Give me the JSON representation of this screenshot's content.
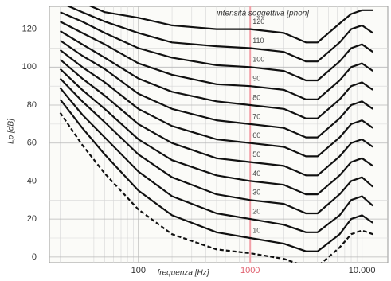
{
  "chart_data": {
    "type": "line",
    "title": "intensità soggettiva [phon]",
    "x_label": "frequenza [Hz]",
    "y_label": "Lp [dB]",
    "log_x": true,
    "grid": true,
    "highlight_x": 1000,
    "highlight_color": "#f2a0a8",
    "xlim": [
      16,
      17000
    ],
    "xticks": [
      100,
      1000,
      {
        "value": 10000,
        "label": "10.000"
      }
    ],
    "ylim": [
      -3,
      132
    ],
    "yticks": [
      0,
      20,
      40,
      60,
      80,
      100,
      120
    ],
    "x": [
      20,
      31.5,
      50,
      100,
      200,
      500,
      1000,
      2000,
      3150,
      4000,
      6300,
      8000,
      10000,
      12500
    ],
    "series": [
      {
        "color": "#111111",
        "dashed": true,
        "values": [
          76,
          59,
          44,
          25,
          12,
          4,
          2,
          -1,
          -5,
          -5,
          5,
          12,
          14,
          12
        ]
      },
      {
        "name": "10",
        "color": "#111111",
        "values": [
          83,
          68,
          54,
          35,
          22,
          13,
          10,
          7,
          3,
          3,
          12,
          20,
          22,
          18
        ]
      },
      {
        "name": "20",
        "color": "#111111",
        "values": [
          89,
          75,
          63,
          45,
          32,
          23,
          20,
          17,
          13,
          13,
          22,
          30,
          32,
          27
        ]
      },
      {
        "name": "30",
        "color": "#111111",
        "values": [
          94,
          82,
          71,
          54,
          42,
          33,
          30,
          28,
          23,
          23,
          33,
          40,
          42,
          37
        ]
      },
      {
        "name": "40",
        "color": "#111111",
        "values": [
          99,
          88,
          78,
          62,
          51,
          43,
          40,
          38,
          33,
          33,
          43,
          50,
          52,
          48
        ]
      },
      {
        "name": "50",
        "color": "#111111",
        "values": [
          104,
          94,
          85,
          70,
          60,
          52,
          50,
          48,
          43,
          43,
          53,
          60,
          62,
          58
        ]
      },
      {
        "name": "60",
        "color": "#111111",
        "values": [
          109,
          100,
          92,
          78,
          69,
          62,
          60,
          58,
          53,
          53,
          63,
          70,
          72,
          68
        ]
      },
      {
        "name": "70",
        "color": "#111111",
        "values": [
          114,
          106,
          99,
          86,
          78,
          72,
          70,
          68,
          63,
          63,
          73,
          80,
          82,
          78
        ]
      },
      {
        "name": "80",
        "color": "#111111",
        "values": [
          119,
          112,
          105,
          94,
          87,
          82,
          80,
          78,
          73,
          73,
          83,
          90,
          92,
          88
        ]
      },
      {
        "name": "90",
        "color": "#111111",
        "values": [
          124,
          118,
          112,
          102,
          96,
          91,
          90,
          88,
          83,
          83,
          93,
          100,
          102,
          98
        ]
      },
      {
        "name": "100",
        "color": "#111111",
        "values": [
          129,
          124,
          118,
          110,
          105,
          101,
          100,
          98,
          93,
          93,
          103,
          110,
          112,
          108
        ]
      },
      {
        "name": "110",
        "color": "#111111",
        "values": [
          134,
          129,
          124,
          118,
          113,
          111,
          110,
          108,
          103,
          103,
          113,
          120,
          122,
          118
        ]
      },
      {
        "name": "120",
        "color": "#111111",
        "values": [
          139,
          134,
          129,
          126,
          122,
          120,
          120,
          118,
          113,
          113,
          123,
          128,
          130,
          130
        ]
      }
    ]
  }
}
